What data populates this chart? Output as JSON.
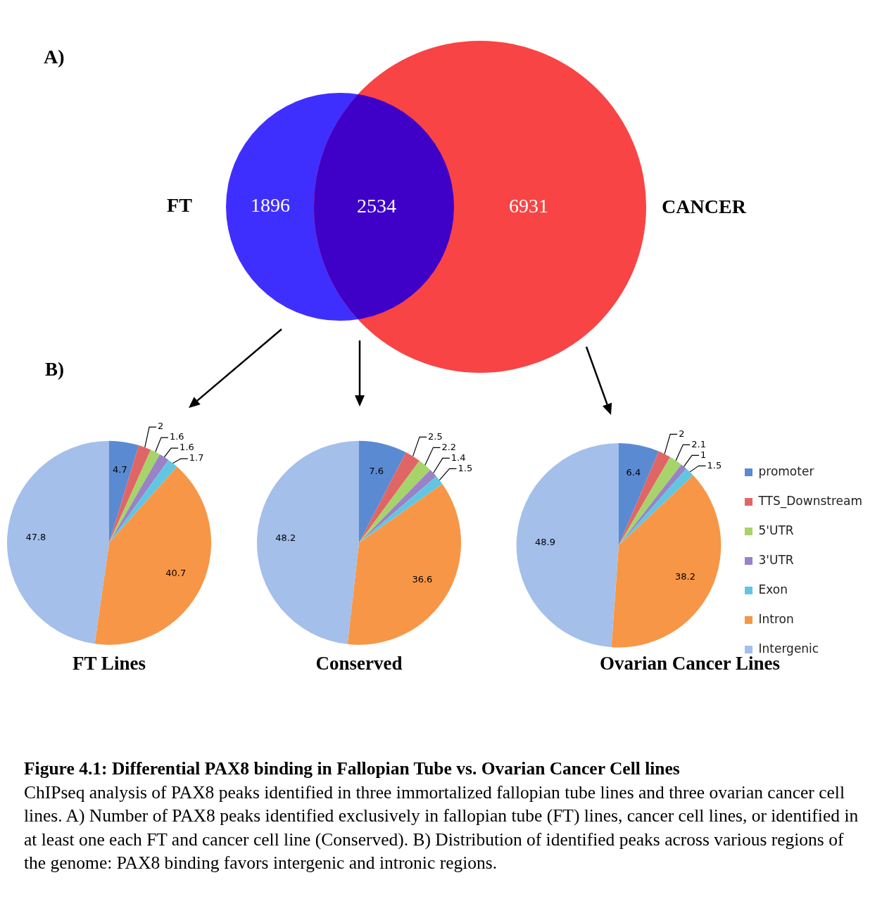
{
  "chart_data": [
    {
      "type": "other",
      "title": "A)",
      "categories": [
        "FT",
        null,
        "CANCER"
      ],
      "values": [
        1896,
        2534,
        6931
      ],
      "colors": [
        "#3f2fff",
        "#3f00c8",
        "#f84444"
      ],
      "data_labels": true
    },
    {
      "type": "pie",
      "title": "FT Lines",
      "annotations": [
        "B)"
      ],
      "values": [
        4.7,
        2,
        1.6,
        1.6,
        1.7,
        40.7,
        47.8
      ],
      "colors": [
        "#5a8ad2",
        "#e06666",
        "#a6d46a",
        "#9a82c6",
        "#62c6e2",
        "#f79646",
        "#a3bfea"
      ],
      "data_labels": true
    },
    {
      "type": "pie",
      "title": "Conserved",
      "values": [
        7.6,
        2.5,
        2.2,
        1.4,
        1.5,
        36.6,
        48.2
      ],
      "colors": [
        "#5a8ad2",
        "#e06666",
        "#a6d46a",
        "#9a82c6",
        "#62c6e2",
        "#f79646",
        "#a3bfea"
      ],
      "data_labels": true
    },
    {
      "type": "pie",
      "title": "Ovarian Cancer Lines",
      "categories": [
        "promoter",
        "TTS_Downstream",
        "5'UTR",
        "3'UTR",
        "Exon",
        "Intron",
        "Intergenic"
      ],
      "values": [
        6.4,
        2,
        2.1,
        1,
        1.5,
        38.2,
        48.9
      ],
      "colors": [
        "#5a8ad2",
        "#e06666",
        "#a6d46a",
        "#9a82c6",
        "#62c6e2",
        "#f79646",
        "#a3bfea"
      ],
      "data_labels": true,
      "legend": "right",
      "annotations": [
        "Figure 4.1: Differential PAX8 binding in Fallopian Tube vs. Ovarian Cancer Cell lines",
        "ChIPseq analysis of PAX8 peaks identified in three immortalized fallopian tube lines and three ovarian cancer cell lines. A) Number of PAX8 peaks identified exclusively in fallopian tube (FT) lines, cancer cell lines, or identified in at least one each FT and cancer cell line (Conserved). B) Distribution of identified peaks across various regions of the genome: PAX8 binding favors intergenic and intronic regions."
      ]
    }
  ]
}
